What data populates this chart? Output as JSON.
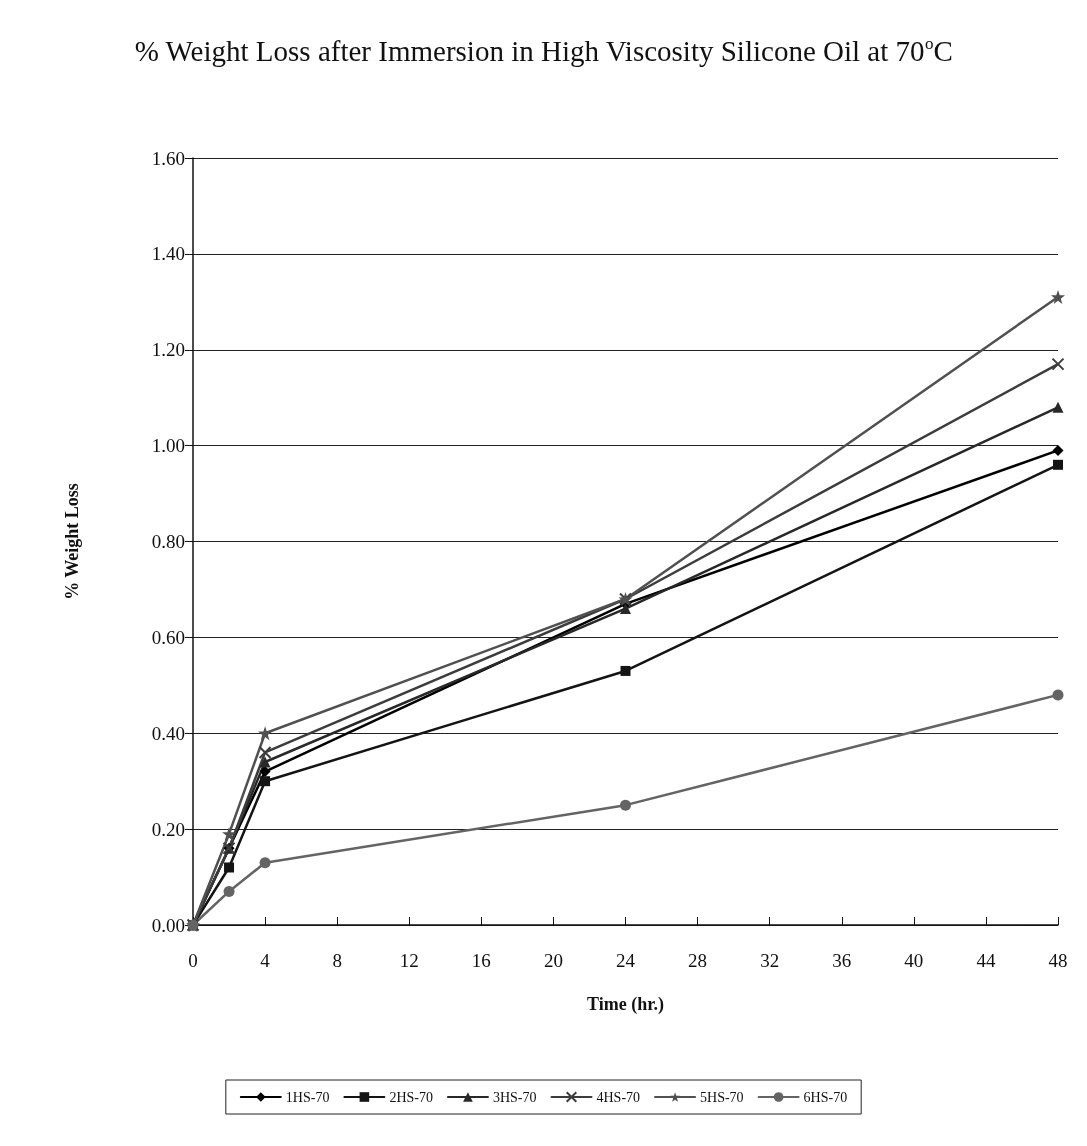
{
  "chart_data": {
    "type": "line",
    "title": "% Weight Loss after Immersion in High Viscosity Silicone Oil at 70$^{o}$C",
    "xlabel": "Time (hr.)",
    "ylabel": "% Weight Loss",
    "x": [
      0,
      2,
      4,
      24,
      48
    ],
    "xlim": [
      0,
      48
    ],
    "xticks": [
      0,
      4,
      8,
      12,
      16,
      20,
      24,
      28,
      32,
      36,
      40,
      44,
      48
    ],
    "ylim": [
      0,
      1.6
    ],
    "yticks": [
      {
        "value": 0,
        "label": "0.00"
      },
      {
        "value": 0.2,
        "label": "0.20"
      },
      {
        "value": 0.4,
        "label": "0.40"
      },
      {
        "value": 0.6,
        "label": "0.60"
      },
      {
        "value": 0.8,
        "label": "0.80"
      },
      {
        "value": 1,
        "label": "1.00"
      },
      {
        "value": 1.2,
        "label": "1.20"
      },
      {
        "value": 1.4,
        "label": "1.40"
      },
      {
        "value": 1.6,
        "label": "1.60"
      }
    ],
    "grid": "y",
    "legend": "bottom",
    "line_style": "solid",
    "series": [
      {
        "name": "1HS-70",
        "color": "#000000",
        "marker": "diamond",
        "values": [
          0,
          0.16,
          0.32,
          0.67,
          0.99
        ]
      },
      {
        "name": "2HS-70",
        "color": "#141414",
        "marker": "square",
        "values": [
          0,
          0.12,
          0.3,
          0.53,
          0.96
        ]
      },
      {
        "name": "3HS-70",
        "color": "#282828",
        "marker": "triangle",
        "values": [
          0,
          0.16,
          0.34,
          0.66,
          1.08
        ]
      },
      {
        "name": "4HS-70",
        "color": "#3c3c3c",
        "marker": "cross",
        "values": [
          0,
          0.16,
          0.36,
          0.68,
          1.17
        ]
      },
      {
        "name": "5HS-70",
        "color": "#505050",
        "marker": "star",
        "values": [
          0,
          0.19,
          0.4,
          0.68,
          1.31
        ]
      },
      {
        "name": "6HS-70",
        "color": "#646464",
        "marker": "circle",
        "values": [
          0,
          0.07,
          0.13,
          0.25,
          0.48
        ]
      }
    ]
  }
}
